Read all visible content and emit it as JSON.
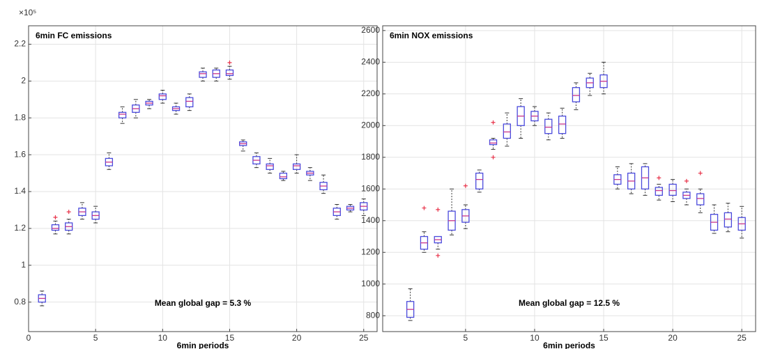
{
  "chart_data": [
    {
      "type": "box",
      "title": "6min FC emissions",
      "xlabel": "6min periods",
      "annotation": "Mean global gap = 5.3 %",
      "y_scale_label": "×10⁵",
      "xlim": [
        0,
        26
      ],
      "xticks": [
        0,
        5,
        10,
        15,
        20,
        25
      ],
      "ylim": [
        0.64,
        2.3
      ],
      "yticks": [
        0.8,
        1,
        1.2,
        1.4,
        1.6,
        1.8,
        2,
        2.2
      ],
      "grid": true,
      "box_color": "#4a4adc",
      "median_color": "#c8358c",
      "flier_color": "#e8334a",
      "boxes": [
        {
          "x": 1,
          "whislo": 0.78,
          "q1": 0.8,
          "med": 0.82,
          "q3": 0.84,
          "whishi": 0.86,
          "fliers": []
        },
        {
          "x": 2,
          "whislo": 1.17,
          "q1": 1.19,
          "med": 1.2,
          "q3": 1.22,
          "whishi": 1.24,
          "fliers": [
            1.26
          ]
        },
        {
          "x": 3,
          "whislo": 1.17,
          "q1": 1.19,
          "med": 1.21,
          "q3": 1.23,
          "whishi": 1.25,
          "fliers": [
            1.29
          ]
        },
        {
          "x": 4,
          "whislo": 1.25,
          "q1": 1.27,
          "med": 1.29,
          "q3": 1.31,
          "whishi": 1.34,
          "fliers": []
        },
        {
          "x": 5,
          "whislo": 1.23,
          "q1": 1.25,
          "med": 1.27,
          "q3": 1.29,
          "whishi": 1.32,
          "fliers": []
        },
        {
          "x": 6,
          "whislo": 1.52,
          "q1": 1.54,
          "med": 1.56,
          "q3": 1.58,
          "whishi": 1.61,
          "fliers": []
        },
        {
          "x": 7,
          "whislo": 1.77,
          "q1": 1.8,
          "med": 1.82,
          "q3": 1.83,
          "whishi": 1.86,
          "fliers": []
        },
        {
          "x": 8,
          "whislo": 1.8,
          "q1": 1.83,
          "med": 1.85,
          "q3": 1.87,
          "whishi": 1.9,
          "fliers": []
        },
        {
          "x": 9,
          "whislo": 1.85,
          "q1": 1.87,
          "med": 1.88,
          "q3": 1.89,
          "whishi": 1.9,
          "fliers": []
        },
        {
          "x": 10,
          "whislo": 1.88,
          "q1": 1.9,
          "med": 1.92,
          "q3": 1.93,
          "whishi": 1.95,
          "fliers": []
        },
        {
          "x": 11,
          "whislo": 1.82,
          "q1": 1.84,
          "med": 1.85,
          "q3": 1.86,
          "whishi": 1.88,
          "fliers": []
        },
        {
          "x": 12,
          "whislo": 1.84,
          "q1": 1.86,
          "med": 1.89,
          "q3": 1.91,
          "whishi": 1.93,
          "fliers": []
        },
        {
          "x": 13,
          "whislo": 2.0,
          "q1": 2.02,
          "med": 2.04,
          "q3": 2.05,
          "whishi": 2.07,
          "fliers": []
        },
        {
          "x": 14,
          "whislo": 2.0,
          "q1": 2.02,
          "med": 2.04,
          "q3": 2.06,
          "whishi": 2.07,
          "fliers": []
        },
        {
          "x": 15,
          "whislo": 2.01,
          "q1": 2.03,
          "med": 2.04,
          "q3": 2.06,
          "whishi": 2.08,
          "fliers": [
            2.1
          ]
        },
        {
          "x": 16,
          "whislo": 1.62,
          "q1": 1.65,
          "med": 1.66,
          "q3": 1.67,
          "whishi": 1.68,
          "fliers": []
        },
        {
          "x": 17,
          "whislo": 1.53,
          "q1": 1.55,
          "med": 1.57,
          "q3": 1.59,
          "whishi": 1.61,
          "fliers": []
        },
        {
          "x": 18,
          "whislo": 1.5,
          "q1": 1.52,
          "med": 1.54,
          "q3": 1.55,
          "whishi": 1.58,
          "fliers": []
        },
        {
          "x": 19,
          "whislo": 1.46,
          "q1": 1.47,
          "med": 1.48,
          "q3": 1.5,
          "whishi": 1.51,
          "fliers": []
        },
        {
          "x": 20,
          "whislo": 1.5,
          "q1": 1.52,
          "med": 1.54,
          "q3": 1.55,
          "whishi": 1.6,
          "fliers": []
        },
        {
          "x": 21,
          "whislo": 1.46,
          "q1": 1.49,
          "med": 1.5,
          "q3": 1.51,
          "whishi": 1.53,
          "fliers": []
        },
        {
          "x": 22,
          "whislo": 1.39,
          "q1": 1.41,
          "med": 1.43,
          "q3": 1.45,
          "whishi": 1.49,
          "fliers": []
        },
        {
          "x": 23,
          "whislo": 1.25,
          "q1": 1.27,
          "med": 1.29,
          "q3": 1.31,
          "whishi": 1.33,
          "fliers": []
        },
        {
          "x": 24,
          "whislo": 1.29,
          "q1": 1.3,
          "med": 1.31,
          "q3": 1.32,
          "whishi": 1.33,
          "fliers": []
        },
        {
          "x": 25,
          "whislo": 1.27,
          "q1": 1.3,
          "med": 1.32,
          "q3": 1.34,
          "whishi": 1.36,
          "fliers": []
        }
      ]
    },
    {
      "type": "box",
      "title": "6min NOX emissions",
      "xlabel": "6min periods",
      "annotation": "Mean global gap = 12.5 %",
      "xlim": [
        -1,
        26
      ],
      "xticks": [
        5,
        10,
        15,
        20,
        25
      ],
      "ylim": [
        700,
        2630
      ],
      "yticks": [
        800,
        1000,
        1200,
        1400,
        1600,
        1800,
        2000,
        2200,
        2400,
        2600
      ],
      "grid": true,
      "box_color": "#4a4adc",
      "median_color": "#c8358c",
      "flier_color": "#e8334a",
      "boxes": [
        {
          "x": 1,
          "whislo": 770,
          "q1": 790,
          "med": 840,
          "q3": 890,
          "whishi": 970,
          "fliers": []
        },
        {
          "x": 2,
          "whislo": 1200,
          "q1": 1220,
          "med": 1260,
          "q3": 1300,
          "whishi": 1330,
          "fliers": [
            1480
          ]
        },
        {
          "x": 3,
          "whislo": 1220,
          "q1": 1260,
          "med": 1280,
          "q3": 1300,
          "whishi": 1300,
          "fliers": [
            1470,
            1180
          ]
        },
        {
          "x": 4,
          "whislo": 1310,
          "q1": 1340,
          "med": 1400,
          "q3": 1460,
          "whishi": 1600,
          "fliers": []
        },
        {
          "x": 5,
          "whislo": 1350,
          "q1": 1390,
          "med": 1430,
          "q3": 1470,
          "whishi": 1500,
          "fliers": [
            1620
          ]
        },
        {
          "x": 6,
          "whislo": 1580,
          "q1": 1600,
          "med": 1660,
          "q3": 1700,
          "whishi": 1720,
          "fliers": []
        },
        {
          "x": 7,
          "whislo": 1850,
          "q1": 1880,
          "med": 1890,
          "q3": 1910,
          "whishi": 1920,
          "fliers": [
            2020,
            1800
          ]
        },
        {
          "x": 8,
          "whislo": 1870,
          "q1": 1920,
          "med": 1960,
          "q3": 2010,
          "whishi": 2080,
          "fliers": []
        },
        {
          "x": 9,
          "whislo": 1920,
          "q1": 2000,
          "med": 2060,
          "q3": 2120,
          "whishi": 2170,
          "fliers": []
        },
        {
          "x": 10,
          "whislo": 2000,
          "q1": 2030,
          "med": 2060,
          "q3": 2090,
          "whishi": 2120,
          "fliers": []
        },
        {
          "x": 11,
          "whislo": 1910,
          "q1": 1950,
          "med": 1990,
          "q3": 2040,
          "whishi": 2080,
          "fliers": []
        },
        {
          "x": 12,
          "whislo": 1920,
          "q1": 1950,
          "med": 2010,
          "q3": 2060,
          "whishi": 2110,
          "fliers": []
        },
        {
          "x": 13,
          "whislo": 2100,
          "q1": 2150,
          "med": 2190,
          "q3": 2240,
          "whishi": 2270,
          "fliers": []
        },
        {
          "x": 14,
          "whislo": 2190,
          "q1": 2240,
          "med": 2270,
          "q3": 2300,
          "whishi": 2330,
          "fliers": []
        },
        {
          "x": 15,
          "whislo": 2200,
          "q1": 2240,
          "med": 2280,
          "q3": 2320,
          "whishi": 2400,
          "fliers": []
        },
        {
          "x": 16,
          "whislo": 1600,
          "q1": 1630,
          "med": 1660,
          "q3": 1690,
          "whishi": 1740,
          "fliers": []
        },
        {
          "x": 17,
          "whislo": 1570,
          "q1": 1600,
          "med": 1650,
          "q3": 1700,
          "whishi": 1760,
          "fliers": []
        },
        {
          "x": 18,
          "whislo": 1560,
          "q1": 1600,
          "med": 1670,
          "q3": 1740,
          "whishi": 1760,
          "fliers": []
        },
        {
          "x": 19,
          "whislo": 1530,
          "q1": 1560,
          "med": 1590,
          "q3": 1610,
          "whishi": 1630,
          "fliers": [
            1670
          ]
        },
        {
          "x": 20,
          "whislo": 1520,
          "q1": 1560,
          "med": 1590,
          "q3": 1630,
          "whishi": 1660,
          "fliers": []
        },
        {
          "x": 21,
          "whislo": 1500,
          "q1": 1540,
          "med": 1560,
          "q3": 1580,
          "whishi": 1600,
          "fliers": [
            1650
          ]
        },
        {
          "x": 22,
          "whislo": 1450,
          "q1": 1500,
          "med": 1540,
          "q3": 1570,
          "whishi": 1600,
          "fliers": [
            1700
          ]
        },
        {
          "x": 23,
          "whislo": 1320,
          "q1": 1340,
          "med": 1390,
          "q3": 1440,
          "whishi": 1500,
          "fliers": []
        },
        {
          "x": 24,
          "whislo": 1330,
          "q1": 1360,
          "med": 1410,
          "q3": 1450,
          "whishi": 1510,
          "fliers": []
        },
        {
          "x": 25,
          "whislo": 1290,
          "q1": 1340,
          "med": 1380,
          "q3": 1420,
          "whishi": 1490,
          "fliers": []
        }
      ]
    }
  ]
}
